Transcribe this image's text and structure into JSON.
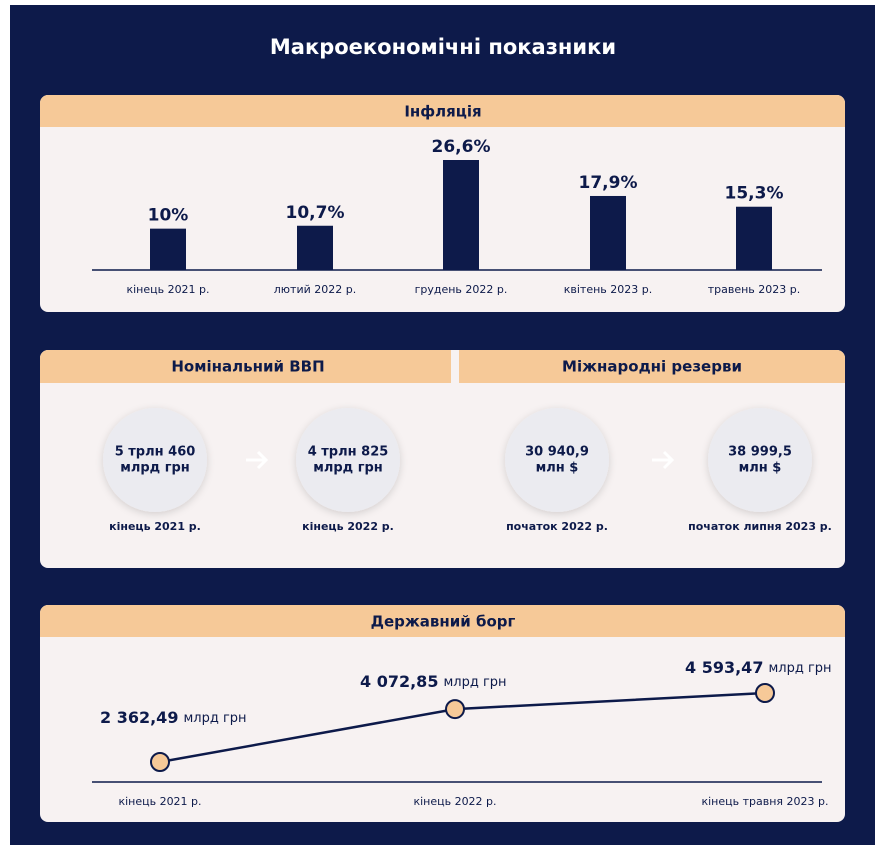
{
  "title": "Макроекономічні показники",
  "chart_data": [
    {
      "type": "bar",
      "title": "Інфляція",
      "categories": [
        "кінець 2021 р.",
        "лютий 2022 р.",
        "грудень 2022 р.",
        "квітень 2023 р.",
        "травень 2023 р."
      ],
      "values": [
        10,
        10.7,
        26.6,
        17.9,
        15.3
      ],
      "value_labels": [
        "10%",
        "10,7%",
        "26,6%",
        "17,9%",
        "15,3%"
      ],
      "color": "#0d1a4a"
    },
    {
      "type": "line",
      "title": "Державний борг",
      "categories": [
        "кінець 2021 р.",
        "кінець 2022 р.",
        "кінець травня 2023 р."
      ],
      "values": [
        2362.49,
        4072.85,
        4593.47
      ],
      "value_labels": [
        "2 362,49",
        "4 072,85",
        "4 593,47"
      ],
      "unit": "млрд грн",
      "color": "#0d1a4a",
      "marker_color": "#f6c998"
    }
  ],
  "gdp": {
    "title": "Номінальний ВВП",
    "items": [
      {
        "value_lines": [
          "5 трлн 460",
          "млрд грн"
        ],
        "label": "кінець 2021 р."
      },
      {
        "value_lines": [
          "4 трлн 825",
          "млрд грн"
        ],
        "label": "кінець 2022 р."
      }
    ]
  },
  "reserves": {
    "title": "Міжнародні резерви",
    "items": [
      {
        "value_lines": [
          "30 940,9",
          "млн $"
        ],
        "label": "початок 2022 р."
      },
      {
        "value_lines": [
          "38 999,5",
          "млн $"
        ],
        "label": "початок липня 2023 р."
      }
    ]
  }
}
